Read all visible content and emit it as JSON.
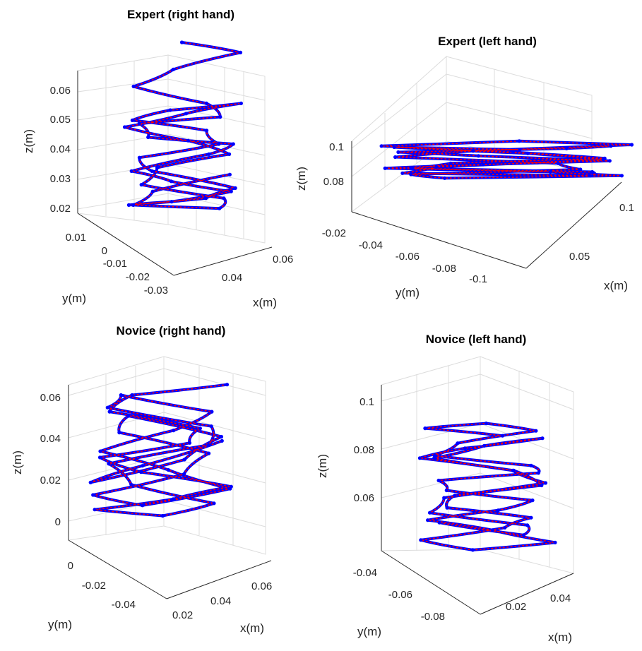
{
  "colors": {
    "trajectory": "#0000ff",
    "samples": "#ff0000",
    "grid": "#dcdcdc",
    "axes": "#262626"
  },
  "chart_data": [
    {
      "type": "line3d",
      "title": "Expert (right hand)",
      "xlabel": "x(m)",
      "ylabel": "y(m)",
      "zlabel": "z(m)",
      "xticks": [
        "0.04",
        "0.06"
      ],
      "yticks": [
        "0.01",
        "0",
        "-0.01",
        "-0.02",
        "-0.03"
      ],
      "zticks": [
        "0.02",
        "0.03",
        "0.04",
        "0.05",
        "0.06"
      ],
      "zlim": [
        0.018,
        0.068
      ],
      "grid": true,
      "series": [
        {
          "z": [
            0.068,
            0.065,
            0.06,
            0.055,
            0.05,
            0.046,
            0.044,
            0.04,
            0.038,
            0.035,
            0.03,
            0.027,
            0.024,
            0.021,
            0.02,
            0.022,
            0.025,
            0.03,
            0.034,
            0.038,
            0.042,
            0.045,
            0.048,
            0.05,
            0.047,
            0.043,
            0.039,
            0.035,
            0.031,
            0.026,
            0.022,
            0.019,
            0.02,
            0.024,
            0.029
          ]
        }
      ]
    },
    {
      "type": "line3d",
      "title": "Expert (left hand)",
      "xlabel": "x(m)",
      "ylabel": "y(m)",
      "zlabel": "z(m)",
      "xticks": [
        "0.05",
        "0.1"
      ],
      "yticks": [
        "-0.02",
        "-0.04",
        "-0.06",
        "-0.08",
        "-0.1"
      ],
      "zticks": [
        "0.08",
        "0.1"
      ],
      "zlim": [
        0.065,
        0.105
      ],
      "grid": true,
      "series": [
        {
          "z": [
            0.1,
            0.098,
            0.095,
            0.092,
            0.088,
            0.085,
            0.082,
            0.079,
            0.076,
            0.074,
            0.077,
            0.081,
            0.086,
            0.091,
            0.096,
            0.101,
            0.104,
            0.1,
            0.095,
            0.09,
            0.086,
            0.082,
            0.079,
            0.076,
            0.078,
            0.083,
            0.089,
            0.094,
            0.099,
            0.097
          ]
        }
      ]
    },
    {
      "type": "line3d",
      "title": "Novice (right hand)",
      "xlabel": "x(m)",
      "ylabel": "y(m)",
      "zlabel": "z(m)",
      "xticks": [
        "0.02",
        "0.04",
        "0.06"
      ],
      "yticks": [
        "0",
        "-0.02",
        "-0.04"
      ],
      "zticks": [
        "0",
        "0.02",
        "0.04",
        "0.06"
      ],
      "zlim": [
        -0.01,
        0.068
      ],
      "grid": true,
      "series": [
        {
          "z": [
            0.063,
            0.058,
            0.05,
            0.042,
            0.035,
            0.028,
            0.021,
            0.014,
            0.008,
            0.003,
            0.0,
            0.006,
            0.015,
            0.025,
            0.034,
            0.043,
            0.052,
            0.058,
            0.05,
            0.041,
            0.031,
            0.022,
            0.013,
            0.005,
            0.01,
            0.02,
            0.03,
            0.04,
            0.048,
            0.038,
            0.027,
            0.016,
            0.024,
            0.036
          ]
        }
      ]
    },
    {
      "type": "line3d",
      "title": "Novice (left hand)",
      "xlabel": "x(m)",
      "ylabel": "y(m)",
      "zlabel": "z(m)",
      "xticks": [
        "0.02",
        "0.04"
      ],
      "yticks": [
        "-0.04",
        "-0.06",
        "-0.08"
      ],
      "zticks": [
        "0.06",
        "0.08",
        "0.1"
      ],
      "zlim": [
        0.04,
        0.104
      ],
      "grid": true,
      "series": [
        {
          "z": [
            0.092,
            0.095,
            0.097,
            0.094,
            0.089,
            0.084,
            0.08,
            0.077,
            0.074,
            0.07,
            0.066,
            0.062,
            0.058,
            0.054,
            0.049,
            0.046,
            0.05,
            0.055,
            0.059,
            0.063,
            0.068,
            0.073,
            0.078,
            0.083,
            0.087,
            0.091,
            0.088,
            0.083,
            0.078,
            0.072,
            0.067,
            0.061,
            0.056,
            0.052,
            0.057
          ]
        }
      ]
    }
  ]
}
